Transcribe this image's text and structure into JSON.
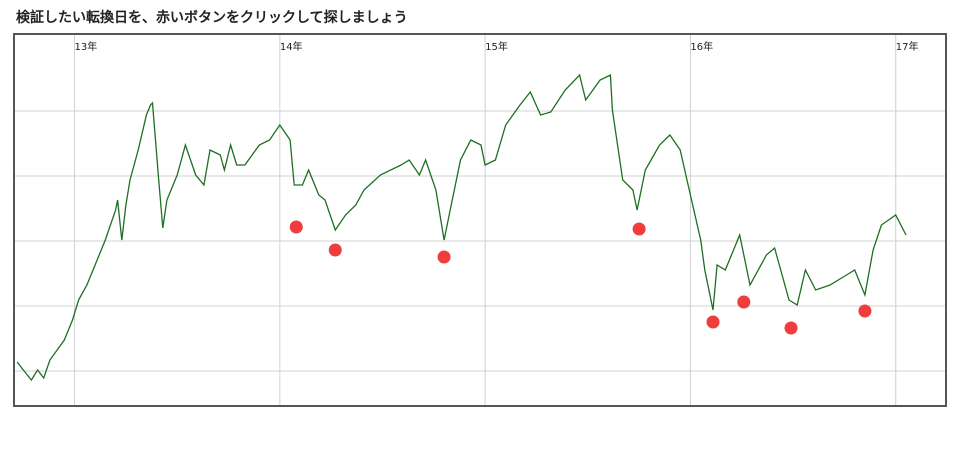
{
  "chart_data": {
    "type": "line",
    "title": "検証したい転換日を、赤いボタンをクリックして探しましょう",
    "xlim": [
      2012.71,
      2017.24
    ],
    "ylim": [
      0,
      370
    ],
    "xticks": [
      {
        "value": 2013,
        "label": "13年"
      },
      {
        "value": 2014,
        "label": "14年"
      },
      {
        "value": 2015,
        "label": "15年"
      },
      {
        "value": 2016,
        "label": "16年"
      },
      {
        "value": 2017,
        "label": "17年"
      }
    ],
    "ygrid": [
      34,
      99,
      164,
      229,
      294
    ],
    "grid": true,
    "series": [
      {
        "color": "#1f6e23",
        "x": [
          2012.72,
          2012.77,
          2012.79,
          2012.82,
          2012.85,
          2012.88,
          2012.95,
          2012.99,
          2013.02,
          2013.06,
          2013.1,
          2013.15,
          2013.2,
          2013.21,
          2013.23,
          2013.25,
          2013.27,
          2013.31,
          2013.35,
          2013.37,
          2013.38,
          2013.4,
          2013.41,
          2013.43,
          2013.45,
          2013.5,
          2013.54,
          2013.59,
          2013.63,
          2013.66,
          2013.71,
          2013.73,
          2013.76,
          2013.79,
          2013.83,
          2013.9,
          2013.95,
          2014.0,
          2014.05,
          2014.07,
          2014.11,
          2014.14,
          2014.19,
          2014.22,
          2014.27,
          2014.32,
          2014.37,
          2014.41,
          2014.49,
          2014.59,
          2014.63,
          2014.68,
          2014.71,
          2014.76,
          2014.8,
          2014.83,
          2014.88,
          2014.93,
          2014.98,
          2015.0,
          2015.05,
          2015.1,
          2015.17,
          2015.22,
          2015.27,
          2015.32,
          2015.39,
          2015.46,
          2015.49,
          2015.56,
          2015.61,
          2015.62,
          2015.67,
          2015.72,
          2015.74,
          2015.78,
          2015.85,
          2015.9,
          2015.95,
          2016.0,
          2016.05,
          2016.07,
          2016.11,
          2016.13,
          2016.17,
          2016.24,
          2016.29,
          2016.37,
          2016.41,
          2016.48,
          2016.52,
          2016.56,
          2016.61,
          2016.68,
          2016.76,
          2016.8,
          2016.85,
          2016.89,
          2016.93,
          2017.0,
          2017.05
        ],
        "values": [
          43,
          30,
          25,
          35,
          27,
          45,
          65,
          85,
          105,
          120,
          140,
          165,
          195,
          205,
          165,
          200,
          225,
          255,
          290,
          300,
          302,
          250,
          225,
          177,
          205,
          230,
          260,
          230,
          220,
          255,
          250,
          235,
          260,
          240,
          240,
          260,
          265,
          280,
          265,
          220,
          220,
          235,
          210,
          205,
          175,
          190,
          200,
          215,
          230,
          240,
          245,
          230,
          245,
          215,
          165,
          195,
          245,
          265,
          260,
          240,
          245,
          280,
          300,
          313,
          290,
          293,
          315,
          330,
          305,
          325,
          330,
          295,
          225,
          215,
          195,
          235,
          260,
          270,
          255,
          210,
          165,
          135,
          95,
          140,
          135,
          170,
          120,
          150,
          157,
          105,
          100,
          135,
          115,
          120,
          130,
          135,
          110,
          155,
          180,
          190,
          170
        ]
      }
    ],
    "markers": {
      "color": "#f03c3c",
      "x": [
        2014.08,
        2014.27,
        2014.8,
        2015.75,
        2016.11,
        2016.26,
        2016.49,
        2016.85
      ],
      "values": [
        178,
        155,
        148,
        176,
        83,
        103,
        77,
        94
      ]
    }
  }
}
